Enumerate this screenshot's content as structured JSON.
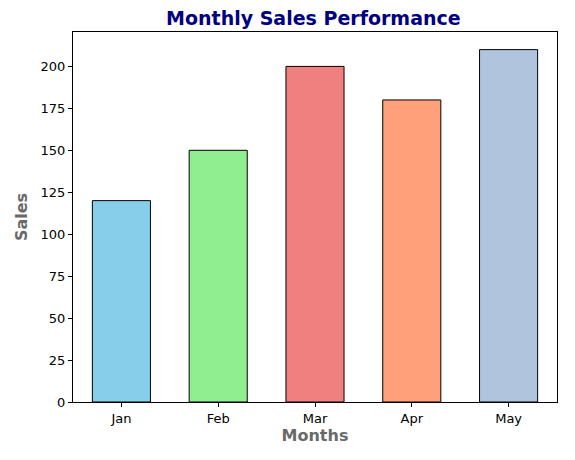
{
  "chart_data": {
    "type": "bar",
    "title": "Monthly Sales Performance",
    "x_label": "Months",
    "y_label": "Sales",
    "categories": [
      "Jan",
      "Feb",
      "Mar",
      "Apr",
      "May"
    ],
    "values": [
      120,
      150,
      200,
      180,
      210
    ],
    "colors": [
      "#87ceeb",
      "#90ee90",
      "#f08080",
      "#ffa07a",
      "#b0c4de"
    ],
    "ylim": [
      0,
      220.5
    ],
    "yticks": [
      0,
      25,
      50,
      75,
      100,
      125,
      150,
      175,
      200
    ],
    "grid": false
  }
}
